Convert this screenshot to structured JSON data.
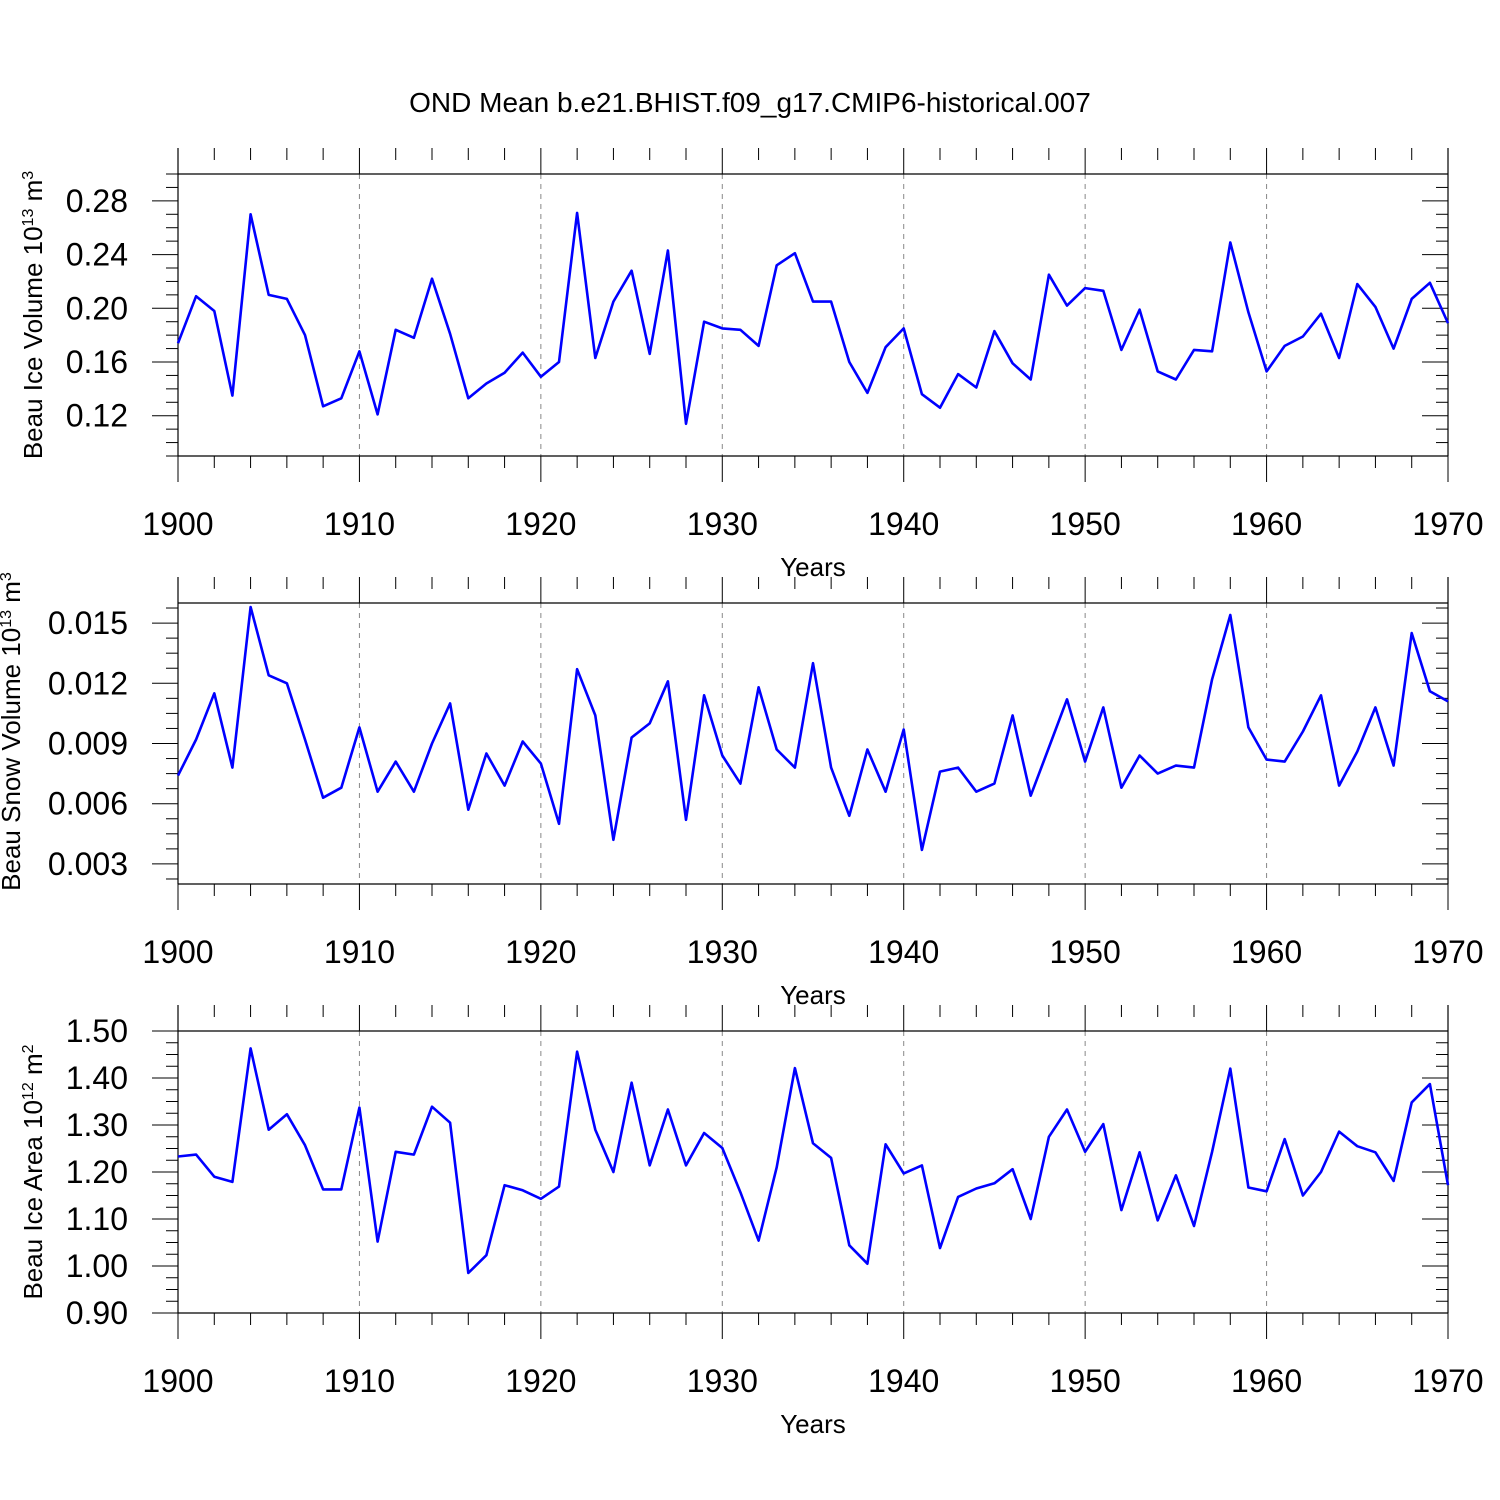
{
  "figure": {
    "title": "OND Mean b.e21.BHIST.f09_g17.CMIP6-historical.007"
  },
  "chart_data": [
    {
      "type": "line",
      "title": "",
      "xlabel": "Years",
      "ylabel": {
        "main": "Beau Ice Volume 10",
        "sup": "13",
        "unit": " m",
        "unit_sup": "3"
      },
      "x": [
        1900,
        1901,
        1902,
        1903,
        1904,
        1905,
        1906,
        1907,
        1908,
        1909,
        1910,
        1911,
        1912,
        1913,
        1914,
        1915,
        1916,
        1917,
        1918,
        1919,
        1920,
        1921,
        1922,
        1923,
        1924,
        1925,
        1926,
        1927,
        1928,
        1929,
        1930,
        1931,
        1932,
        1933,
        1934,
        1935,
        1936,
        1937,
        1938,
        1939,
        1940,
        1941,
        1942,
        1943,
        1944,
        1945,
        1946,
        1947,
        1948,
        1949,
        1950,
        1951,
        1952,
        1953,
        1954,
        1955,
        1956,
        1957,
        1958,
        1959,
        1960,
        1961,
        1962,
        1963,
        1964,
        1965,
        1966,
        1967,
        1968,
        1969,
        1970
      ],
      "series": [
        {
          "values": [
            0.174,
            0.209,
            0.198,
            0.135,
            0.27,
            0.21,
            0.207,
            0.18,
            0.127,
            0.133,
            0.168,
            0.121,
            0.184,
            0.178,
            0.222,
            0.181,
            0.133,
            0.144,
            0.152,
            0.167,
            0.149,
            0.16,
            0.271,
            0.163,
            0.205,
            0.228,
            0.166,
            0.243,
            0.114,
            0.19,
            0.185,
            0.184,
            0.172,
            0.232,
            0.241,
            0.205,
            0.205,
            0.16,
            0.137,
            0.171,
            0.185,
            0.136,
            0.126,
            0.151,
            0.141,
            0.183,
            0.159,
            0.147,
            0.225,
            0.202,
            0.215,
            0.213,
            0.169,
            0.199,
            0.153,
            0.147,
            0.169,
            0.168,
            0.249,
            0.197,
            0.153,
            0.172,
            0.179,
            0.196,
            0.163,
            0.218,
            0.201,
            0.17,
            0.207,
            0.219,
            0.189
          ]
        }
      ],
      "xlim": [
        1900,
        1970
      ],
      "ylim": [
        0.09,
        0.3
      ],
      "yticks": [
        "0.12",
        "0.16",
        "0.20",
        "0.24",
        "0.28"
      ],
      "xticks": [
        "1900",
        "1910",
        "1920",
        "1930",
        "1940",
        "1950",
        "1960",
        "1970"
      ],
      "line_color": "#0000ff",
      "grid": "vertical dashed at decades"
    },
    {
      "type": "line",
      "title": "",
      "xlabel": "Years",
      "ylabel": {
        "main": "Beau Snow Volume 10",
        "sup": "13",
        "unit": " m",
        "unit_sup": "3"
      },
      "x": [
        1900,
        1901,
        1902,
        1903,
        1904,
        1905,
        1906,
        1907,
        1908,
        1909,
        1910,
        1911,
        1912,
        1913,
        1914,
        1915,
        1916,
        1917,
        1918,
        1919,
        1920,
        1921,
        1922,
        1923,
        1924,
        1925,
        1926,
        1927,
        1928,
        1929,
        1930,
        1931,
        1932,
        1933,
        1934,
        1935,
        1936,
        1937,
        1938,
        1939,
        1940,
        1941,
        1942,
        1943,
        1944,
        1945,
        1946,
        1947,
        1948,
        1949,
        1950,
        1951,
        1952,
        1953,
        1954,
        1955,
        1956,
        1957,
        1958,
        1959,
        1960,
        1961,
        1962,
        1963,
        1964,
        1965,
        1966,
        1967,
        1968,
        1969,
        1970
      ],
      "series": [
        {
          "values": [
            0.0074,
            0.0092,
            0.0115,
            0.0078,
            0.0158,
            0.0124,
            0.012,
            0.0092,
            0.0063,
            0.0068,
            0.0098,
            0.0066,
            0.0081,
            0.0066,
            0.009,
            0.011,
            0.0057,
            0.0085,
            0.0069,
            0.0091,
            0.008,
            0.005,
            0.0127,
            0.0104,
            0.0042,
            0.0093,
            0.01,
            0.0121,
            0.0052,
            0.0114,
            0.0084,
            0.007,
            0.0118,
            0.0087,
            0.0078,
            0.013,
            0.0078,
            0.0054,
            0.0087,
            0.0066,
            0.0097,
            0.0037,
            0.0076,
            0.0078,
            0.0066,
            0.007,
            0.0104,
            0.0064,
            0.0088,
            0.0112,
            0.0081,
            0.0108,
            0.0068,
            0.0084,
            0.0075,
            0.0079,
            0.0078,
            0.0122,
            0.0154,
            0.0098,
            0.0082,
            0.0081,
            0.0096,
            0.0114,
            0.0069,
            0.0086,
            0.0108,
            0.0079,
            0.0145,
            0.0116,
            0.0111
          ]
        }
      ],
      "xlim": [
        1900,
        1970
      ],
      "ylim": [
        0.002,
        0.016
      ],
      "yticks": [
        "0.003",
        "0.006",
        "0.009",
        "0.012",
        "0.015"
      ],
      "xticks": [
        "1900",
        "1910",
        "1920",
        "1930",
        "1940",
        "1950",
        "1960",
        "1970"
      ],
      "line_color": "#0000ff",
      "grid": "vertical dashed at decades"
    },
    {
      "type": "line",
      "title": "",
      "xlabel": "Years",
      "ylabel": {
        "main": "Beau Ice Area 10",
        "sup": "12",
        "unit": " m",
        "unit_sup": "2"
      },
      "x": [
        1900,
        1901,
        1902,
        1903,
        1904,
        1905,
        1906,
        1907,
        1908,
        1909,
        1910,
        1911,
        1912,
        1913,
        1914,
        1915,
        1916,
        1917,
        1918,
        1919,
        1920,
        1921,
        1922,
        1923,
        1924,
        1925,
        1926,
        1927,
        1928,
        1929,
        1930,
        1931,
        1932,
        1933,
        1934,
        1935,
        1936,
        1937,
        1938,
        1939,
        1940,
        1941,
        1942,
        1943,
        1944,
        1945,
        1946,
        1947,
        1948,
        1949,
        1950,
        1951,
        1952,
        1953,
        1954,
        1955,
        1956,
        1957,
        1958,
        1959,
        1960,
        1961,
        1962,
        1963,
        1964,
        1965,
        1966,
        1967,
        1968,
        1969,
        1970
      ],
      "series": [
        {
          "values": [
            1.233,
            1.237,
            1.19,
            1.179,
            1.463,
            1.29,
            1.323,
            1.257,
            1.163,
            1.163,
            1.337,
            1.052,
            1.243,
            1.237,
            1.339,
            1.305,
            0.985,
            1.023,
            1.172,
            1.161,
            1.143,
            1.169,
            1.456,
            1.29,
            1.2,
            1.39,
            1.214,
            1.333,
            1.214,
            1.283,
            1.251,
            1.157,
            1.054,
            1.21,
            1.421,
            1.261,
            1.23,
            1.044,
            1.005,
            1.259,
            1.197,
            1.214,
            1.038,
            1.147,
            1.165,
            1.176,
            1.206,
            1.1,
            1.275,
            1.333,
            1.243,
            1.302,
            1.119,
            1.242,
            1.097,
            1.193,
            1.085,
            1.243,
            1.42,
            1.167,
            1.159,
            1.27,
            1.15,
            1.2,
            1.286,
            1.255,
            1.242,
            1.181,
            1.348,
            1.387,
            1.172
          ]
        }
      ],
      "xlim": [
        1900,
        1970
      ],
      "ylim": [
        0.9,
        1.5
      ],
      "yticks": [
        "0.90",
        "1.00",
        "1.10",
        "1.20",
        "1.30",
        "1.40",
        "1.50"
      ],
      "xticks": [
        "1900",
        "1910",
        "1920",
        "1930",
        "1940",
        "1950",
        "1960",
        "1970"
      ],
      "line_color": "#0000ff",
      "grid": "vertical dashed at decades"
    }
  ]
}
